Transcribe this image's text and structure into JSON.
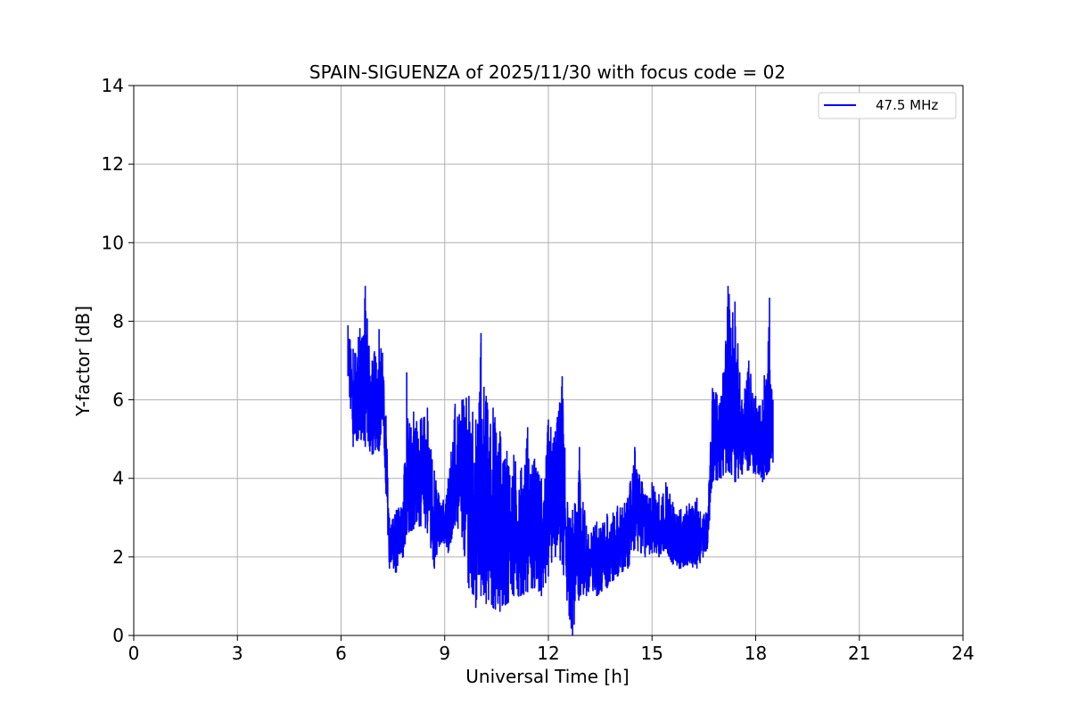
{
  "chart_data": {
    "type": "line",
    "title": "SPAIN-SIGUENZA of 2025/11/30 with focus code = 02",
    "xlabel": "Universal Time [h]",
    "ylabel": "Y-factor [dB]",
    "xlim": [
      0,
      24
    ],
    "ylim": [
      0,
      14
    ],
    "xticks": [
      "0",
      "3",
      "6",
      "9",
      "12",
      "15",
      "18",
      "21",
      "24"
    ],
    "yticks": [
      "0",
      "2",
      "4",
      "6",
      "8",
      "10",
      "12",
      "14"
    ],
    "grid": true,
    "legend_position": "top-right",
    "series": [
      {
        "name": "47.5 MHz",
        "color": "#0000ff",
        "envelope": [
          [
            6.2,
            6.6,
            7.9
          ],
          [
            6.35,
            4.8,
            7.3
          ],
          [
            6.5,
            5.0,
            7.6
          ],
          [
            6.7,
            4.8,
            8.9
          ],
          [
            6.9,
            4.6,
            7.0
          ],
          [
            7.1,
            4.7,
            7.8
          ],
          [
            7.2,
            5.5,
            7.2
          ],
          [
            7.3,
            3.6,
            5.6
          ],
          [
            7.4,
            1.7,
            3.0
          ],
          [
            7.6,
            1.6,
            3.2
          ],
          [
            7.8,
            2.0,
            3.4
          ],
          [
            7.9,
            2.6,
            6.7
          ],
          [
            8.1,
            2.7,
            5.7
          ],
          [
            8.3,
            2.8,
            5.5
          ],
          [
            8.5,
            2.6,
            5.8
          ],
          [
            8.7,
            1.7,
            4.2
          ],
          [
            8.9,
            2.4,
            3.3
          ],
          [
            9.1,
            2.1,
            4.0
          ],
          [
            9.3,
            2.8,
            5.9
          ],
          [
            9.5,
            2.5,
            6.0
          ],
          [
            9.7,
            1.2,
            6.1
          ],
          [
            9.9,
            0.7,
            5.5
          ],
          [
            10.05,
            1.0,
            7.7
          ],
          [
            10.2,
            0.8,
            6.1
          ],
          [
            10.4,
            0.7,
            5.8
          ],
          [
            10.6,
            0.6,
            5.2
          ],
          [
            10.8,
            0.8,
            4.7
          ],
          [
            11.0,
            1.0,
            4.6
          ],
          [
            11.2,
            1.0,
            4.2
          ],
          [
            11.4,
            1.1,
            5.3
          ],
          [
            11.6,
            1.2,
            4.5
          ],
          [
            11.8,
            1.0,
            4.0
          ],
          [
            12.0,
            1.5,
            5.5
          ],
          [
            12.2,
            2.0,
            5.2
          ],
          [
            12.4,
            1.8,
            6.6
          ],
          [
            12.6,
            0.5,
            3.0
          ],
          [
            12.7,
            0.0,
            3.2
          ],
          [
            12.9,
            1.0,
            4.8
          ],
          [
            13.1,
            1.0,
            2.8
          ],
          [
            13.4,
            1.0,
            2.9
          ],
          [
            13.7,
            1.2,
            3.1
          ],
          [
            14.0,
            1.5,
            3.3
          ],
          [
            14.3,
            1.7,
            3.5
          ],
          [
            14.5,
            2.2,
            4.8
          ],
          [
            14.8,
            2.0,
            3.6
          ],
          [
            15.0,
            2.1,
            3.9
          ],
          [
            15.2,
            2.0,
            3.6
          ],
          [
            15.4,
            2.2,
            3.9
          ],
          [
            15.6,
            1.8,
            3.4
          ],
          [
            15.8,
            1.7,
            3.2
          ],
          [
            16.0,
            1.8,
            3.3
          ],
          [
            16.3,
            1.7,
            3.5
          ],
          [
            16.6,
            2.2,
            3.1
          ],
          [
            16.75,
            3.9,
            6.3
          ],
          [
            17.0,
            4.0,
            6.1
          ],
          [
            17.2,
            4.2,
            8.9
          ],
          [
            17.4,
            3.9,
            8.5
          ],
          [
            17.6,
            4.1,
            6.0
          ],
          [
            17.8,
            4.2,
            7.0
          ],
          [
            18.0,
            4.1,
            6.1
          ],
          [
            18.2,
            3.9,
            6.0
          ],
          [
            18.4,
            4.2,
            8.6
          ],
          [
            18.5,
            4.4,
            6.0
          ]
        ]
      }
    ]
  }
}
